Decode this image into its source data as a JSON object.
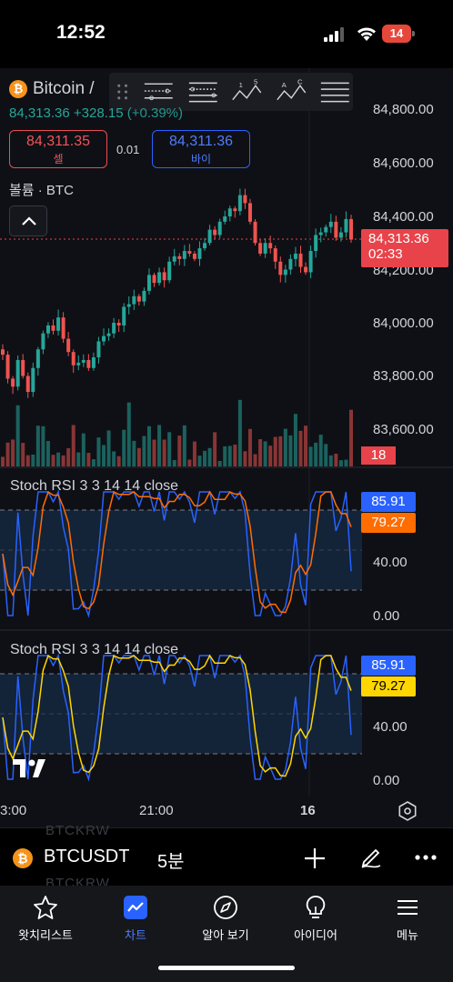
{
  "status_bar": {
    "time": "12:52",
    "battery": "14"
  },
  "chart": {
    "symbol": "Bitcoin /",
    "last": "84,313.36",
    "change": "+328.15",
    "change_pct": "(+0.39%)",
    "sell_price": "84,311.35",
    "sell_label": "셀",
    "buy_price": "84,311.36",
    "buy_label": "바이",
    "spread": "0.01",
    "volume_label": "볼륨 · BTC",
    "price_axis": [
      "84,800.00",
      "84,600.00",
      "84,400.00",
      "84,200.00",
      "84,000.00",
      "83,800.00",
      "83,600.00"
    ],
    "price_badge": "84,313.36",
    "countdown": "02:33",
    "volume_badge": "18",
    "time_axis": [
      "3:00",
      "21:00",
      "16"
    ]
  },
  "indicators": [
    {
      "title": "Stoch RSI 3 3 14 14 close",
      "k": "85.91",
      "d": "79.27",
      "levels": [
        "40.00",
        "0.00"
      ],
      "k_color": "#2962ff",
      "d_color": "#ff6d00"
    },
    {
      "title": "Stoch RSI 3 3 14 14 close",
      "k": "85.91",
      "d": "79.27",
      "levels": [
        "40.00",
        "0.00"
      ],
      "k_color": "#2962ff",
      "d_color": "#ffd600"
    }
  ],
  "symbol_bar": {
    "symbol": "BTCUSDT",
    "interval": "5분",
    "ghost_top": "BTCKRW",
    "ghost_bottom": "BTCKRW"
  },
  "tabs": [
    {
      "label": "왓치리스트",
      "icon": "star-icon"
    },
    {
      "label": "차트",
      "icon": "chart-icon"
    },
    {
      "label": "알아 보기",
      "icon": "compass-icon"
    },
    {
      "label": "아이디어",
      "icon": "lightbulb-icon"
    },
    {
      "label": "메뉴",
      "icon": "menu-icon"
    }
  ],
  "colors": {
    "up": "#26a69a",
    "down": "#ef5350",
    "background": "#0f1015"
  },
  "chart_data": {
    "type": "candlestick",
    "y_range": [
      83500,
      84900
    ],
    "closes": [
      83880,
      83790,
      83760,
      83860,
      83800,
      83740,
      83830,
      83900,
      83960,
      83990,
      83970,
      84020,
      83940,
      83890,
      83840,
      83850,
      83860,
      83830,
      83870,
      83930,
      83950,
      83960,
      84000,
      83990,
      84060,
      84070,
      84100,
      84080,
      84120,
      84180,
      84150,
      84190,
      84160,
      84230,
      84250,
      84240,
      84270,
      84260,
      84240,
      84280,
      84300,
      84350,
      84330,
      84380,
      84400,
      84430,
      84420,
      84480,
      84450,
      84380,
      84300,
      84260,
      84300,
      84280,
      84230,
      84180,
      84200,
      84240,
      84260,
      84210,
      84190,
      84270,
      84330,
      84340,
      84360,
      84380,
      84320,
      84340,
      84390,
      84313
    ]
  }
}
